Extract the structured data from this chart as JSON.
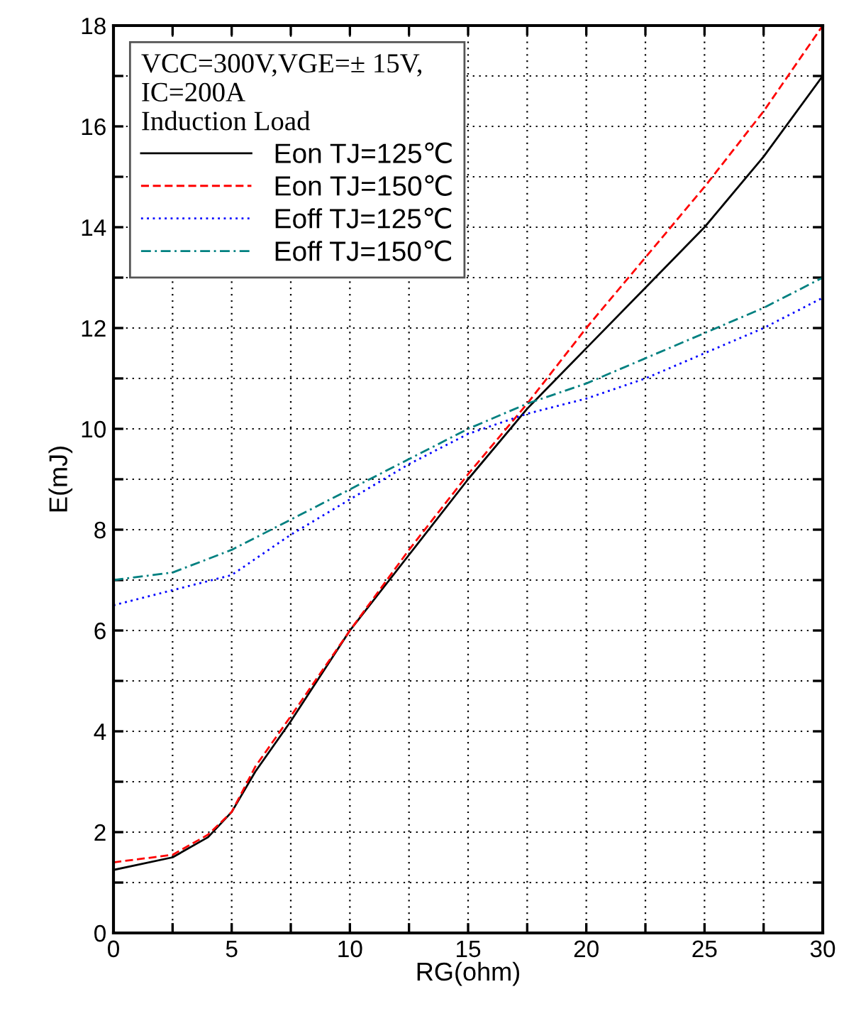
{
  "chart_data": {
    "type": "line",
    "xlabel": "RG(ohm)",
    "ylabel": "E(mJ)",
    "legend_title": "VCC=300V,VGE=± 15V,\nIC=200A\nInduction Load",
    "x": [
      0,
      2.5,
      4,
      5,
      6,
      7.5,
      10,
      12.5,
      15,
      17.5,
      20,
      22.5,
      25,
      27.5,
      30
    ],
    "series": [
      {
        "name": "Eon TJ=125℃",
        "color": "#000000",
        "line_style": "solid",
        "values": [
          1.25,
          1.5,
          1.9,
          2.4,
          3.2,
          4.2,
          6.0,
          7.5,
          9.0,
          10.4,
          11.6,
          12.8,
          14.0,
          15.4,
          17.0
        ]
      },
      {
        "name": "Eon TJ=150℃",
        "color": "#ff0000",
        "line_style": "dashed",
        "values": [
          1.4,
          1.55,
          1.95,
          2.4,
          3.3,
          4.3,
          6.0,
          7.6,
          9.1,
          10.5,
          12.0,
          13.4,
          14.8,
          16.3,
          18.0
        ]
      },
      {
        "name": "Eoff TJ=125℃",
        "color": "#0000ff",
        "line_style": "dotted",
        "x": [
          0,
          2.5,
          5,
          7.5,
          10,
          12.5,
          15,
          17.5,
          20,
          22.5,
          25,
          27.5,
          30
        ],
        "values": [
          6.5,
          6.8,
          7.1,
          7.9,
          8.6,
          9.3,
          9.9,
          10.3,
          10.6,
          11.0,
          11.5,
          12.0,
          12.6
        ]
      },
      {
        "name": "Eoff TJ=150℃",
        "color": "#008080",
        "line_style": "dashdot",
        "x": [
          0,
          2.5,
          5,
          7.5,
          10,
          12.5,
          15,
          17.5,
          20,
          22.5,
          25,
          27.5,
          30
        ],
        "values": [
          7.0,
          7.15,
          7.6,
          8.2,
          8.8,
          9.4,
          10.0,
          10.5,
          10.9,
          11.4,
          11.9,
          12.4,
          13.0
        ]
      }
    ],
    "xlim": [
      0,
      30
    ],
    "ylim": [
      0,
      18
    ],
    "xticks": [
      0,
      {
        "value": 2.5,
        "label": null
      },
      5,
      {
        "value": 7.5,
        "label": null
      },
      10,
      {
        "value": 12.5,
        "label": null
      },
      15,
      {
        "value": 17.5,
        "label": null
      },
      20,
      {
        "value": 22.5,
        "label": null
      },
      25,
      {
        "value": 27.5,
        "label": null
      },
      30
    ],
    "yticks": [
      0,
      {
        "value": 1,
        "label": null
      },
      2,
      {
        "value": 3,
        "label": null
      },
      4,
      {
        "value": 5,
        "label": null
      },
      6,
      {
        "value": 7,
        "label": null
      },
      8,
      {
        "value": 9,
        "label": null
      },
      10,
      {
        "value": 11,
        "label": null
      },
      12,
      {
        "value": 13,
        "label": null
      },
      14,
      {
        "value": 15,
        "label": null
      },
      16,
      {
        "value": 17,
        "label": null
      },
      18
    ],
    "grid": true,
    "legend": "top left"
  }
}
